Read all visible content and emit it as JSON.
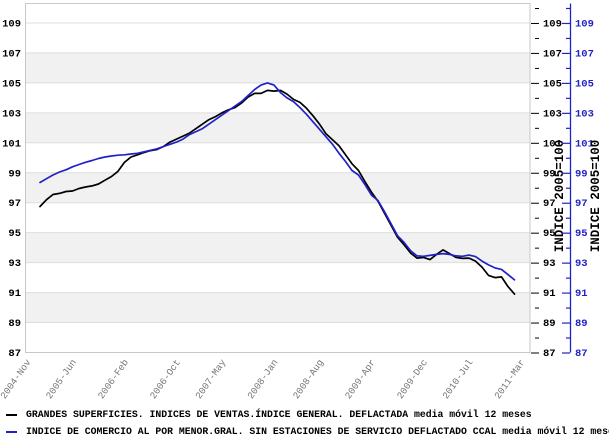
{
  "chart_data": {
    "type": "line",
    "title": "",
    "x_axis": {
      "tick_labels": [
        "2004-Nov",
        "2005-Jun",
        "2006-Feb",
        "2006-Oct",
        "2007-May",
        "2008-Jan",
        "2008-Aug",
        "2009-Apr",
        "2009-Dec",
        "2010-Jul",
        "2011-Mar"
      ],
      "tick_months": [
        0,
        7,
        15,
        23,
        30,
        38,
        45,
        53,
        61,
        68,
        76
      ],
      "range_months": [
        0,
        76
      ]
    },
    "y_axis": {
      "ticks": [
        87,
        89,
        91,
        93,
        95,
        97,
        99,
        101,
        103,
        105,
        107,
        109
      ],
      "minor_ticks": [
        88,
        90,
        92,
        94,
        96,
        98,
        100,
        102,
        104,
        106,
        108,
        110
      ],
      "range": [
        87,
        110.3
      ],
      "right_title_black": "INDICE 2005=100",
      "right_title_blue": "INDICE 2005=100"
    },
    "shaded_bands": [
      [
        105,
        107
      ],
      [
        101,
        103
      ],
      [
        97,
        99
      ],
      [
        93,
        95
      ],
      [
        89,
        91
      ]
    ],
    "band_color": "#f1f1f1",
    "gridline_color": "#dddddd",
    "border_color": "#c8c8c8",
    "x_label_color": "#767676",
    "series": [
      {
        "name": "GRANDES SUPERFICIES. INDICES DE VENTAS.ÍNDICE GENERAL. DEFLACTADA media móvil 12 meses",
        "color": "#000000",
        "frequency": "monthly",
        "start_date": "2005-Jan",
        "end_date": "2011-Feb",
        "start_month_index": 2,
        "values": [
          96.75,
          97.2,
          97.55,
          97.62,
          97.75,
          97.78,
          97.95,
          98.05,
          98.12,
          98.25,
          98.5,
          98.75,
          99.1,
          99.7,
          100.05,
          100.2,
          100.35,
          100.48,
          100.55,
          100.75,
          101.05,
          101.25,
          101.45,
          101.65,
          101.95,
          102.25,
          102.55,
          102.75,
          103.0,
          103.2,
          103.35,
          103.65,
          104.05,
          104.3,
          104.3,
          104.5,
          104.45,
          104.5,
          104.25,
          103.9,
          103.7,
          103.3,
          102.8,
          102.25,
          101.6,
          101.2,
          100.8,
          100.2,
          99.6,
          99.15,
          98.4,
          97.7,
          97.1,
          96.3,
          95.5,
          94.7,
          94.2,
          93.65,
          93.3,
          93.35,
          93.2,
          93.55,
          93.85,
          93.6,
          93.35,
          93.28,
          93.3,
          93.1,
          92.7,
          92.15,
          92.0,
          92.05,
          91.4,
          90.9
        ]
      },
      {
        "name": "INDICE DE COMERCIO AL POR MENOR.GRAL. SIN ESTACIONES DE SERVICIO DEFLACTADO CCAL media móvil 12 meses",
        "color": "#2121c8",
        "frequency": "monthly",
        "start_date": "2005-Jan",
        "end_date": "2011-Feb",
        "start_month_index": 2,
        "values": [
          98.35,
          98.6,
          98.85,
          99.05,
          99.2,
          99.4,
          99.55,
          99.7,
          99.82,
          99.95,
          100.05,
          100.12,
          100.17,
          100.2,
          100.25,
          100.3,
          100.4,
          100.5,
          100.6,
          100.75,
          100.9,
          101.05,
          101.25,
          101.55,
          101.75,
          101.95,
          102.25,
          102.55,
          102.85,
          103.15,
          103.45,
          103.75,
          104.15,
          104.55,
          104.85,
          105.0,
          104.85,
          104.35,
          104.0,
          103.75,
          103.35,
          102.9,
          102.4,
          101.9,
          101.4,
          100.9,
          100.3,
          99.75,
          99.15,
          98.85,
          98.2,
          97.5,
          97.15,
          96.4,
          95.6,
          94.8,
          94.35,
          93.8,
          93.45,
          93.42,
          93.48,
          93.55,
          93.6,
          93.55,
          93.45,
          93.42,
          93.5,
          93.4,
          93.1,
          92.85,
          92.65,
          92.55,
          92.2,
          91.85
        ]
      }
    ],
    "legend_position": "bottom-left"
  },
  "legend": {
    "items": [
      {
        "swatch_color": "#000000"
      },
      {
        "swatch_color": "#2121c8"
      }
    ]
  }
}
